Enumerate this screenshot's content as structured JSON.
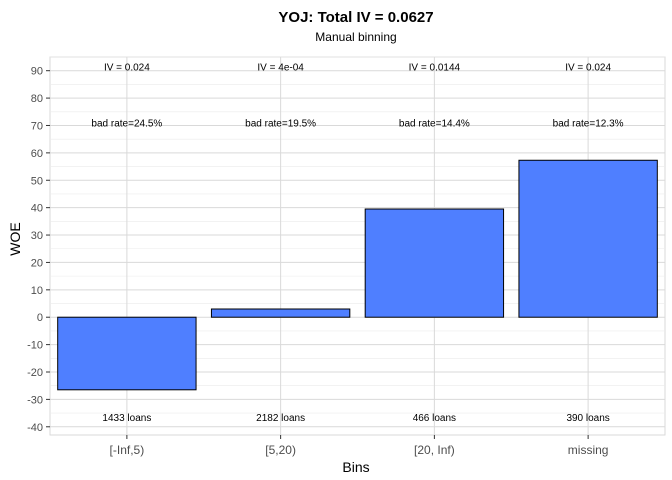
{
  "chart_data": {
    "type": "bar",
    "title": "YOJ: Total IV = 0.0627",
    "subtitle": "Manual binning",
    "xlabel": "Bins",
    "ylabel": "WOE",
    "categories": [
      "[-Inf,5)",
      "[5,20)",
      "[20, Inf)",
      "missing"
    ],
    "values": [
      -26.5,
      3.0,
      39.5,
      57.3
    ],
    "iv_labels": [
      "IV = 0.024",
      "IV = 4e-04",
      "IV = 0.0144",
      "IV = 0.024"
    ],
    "bad_rate_labels": [
      "bad rate=24.5%",
      "bad rate=19.5%",
      "bad rate=14.4%",
      "bad rate=12.3%"
    ],
    "count_labels": [
      "1433 loans",
      "2182 loans",
      "466 loans",
      "390 loans"
    ],
    "yticks": [
      -40,
      -30,
      -20,
      -10,
      0,
      10,
      20,
      30,
      40,
      50,
      60,
      70,
      80,
      90
    ],
    "ylim": [
      -43,
      95
    ],
    "grid": true,
    "bar_color": "#4f7fff",
    "bar_border_color": "#000000",
    "grid_color": "#d9d9d9"
  }
}
